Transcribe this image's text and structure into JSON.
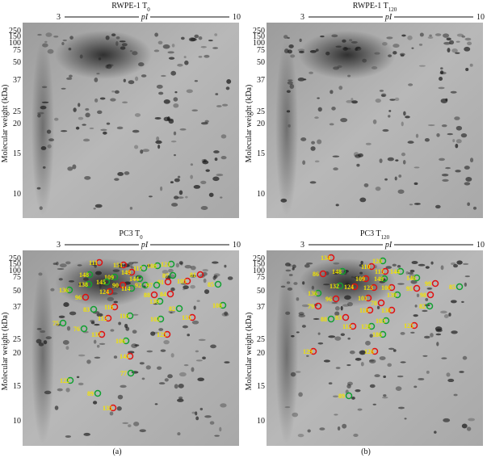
{
  "panels": [
    {
      "title": "RWPE-1 T",
      "title_sub": "0",
      "pi_start": "3",
      "pi_label": "pI",
      "pi_end": "10",
      "y_label": "Molecular weight (kDa)",
      "mw_ticks": [
        "250",
        "150",
        "100",
        "75",
        "50",
        "37",
        "25",
        "20",
        "15",
        "10"
      ]
    },
    {
      "title": "RWPE-1 T",
      "title_sub": "120",
      "pi_start": "3",
      "pi_label": "pI",
      "pi_end": "10",
      "y_label": "Molecular weight (kDa)",
      "mw_ticks": [
        "250",
        "150",
        "100",
        "75",
        "50",
        "37",
        "25",
        "20",
        "15",
        "10"
      ]
    },
    {
      "title": "PC3 T",
      "title_sub": "0",
      "pi_start": "3",
      "pi_label": "pI",
      "pi_end": "10",
      "y_label": "Molecular weight (kDa)",
      "mw_ticks": [
        "250",
        "150",
        "100",
        "75",
        "50",
        "37",
        "25",
        "20",
        "15",
        "10"
      ],
      "spots": [
        "111",
        "151",
        "108",
        "121",
        "117",
        "148",
        "149",
        "109",
        "144",
        "87",
        "145",
        "90",
        "114",
        "92",
        "91",
        "105",
        "81",
        "85",
        "136",
        "138",
        "124",
        "88",
        "97",
        "84",
        "96",
        "139",
        "118",
        "83",
        "82",
        "108",
        "116",
        "112",
        "131",
        "102",
        "75",
        "76",
        "137",
        "125",
        "106",
        "141",
        "77",
        "122",
        "89",
        "135"
      ]
    },
    {
      "title": "PC3 T",
      "title_sub": "120",
      "pi_start": "3",
      "pi_label": "pI",
      "pi_end": "10",
      "y_label": "Molecular weight (kDa)",
      "mw_ticks": [
        "250",
        "150",
        "100",
        "75",
        "50",
        "37",
        "25",
        "20",
        "15",
        "10"
      ],
      "spots": [
        "134",
        "120",
        "110",
        "86",
        "148",
        "115",
        "144",
        "109",
        "149",
        "146",
        "99",
        "85",
        "132",
        "124",
        "123",
        "100",
        "95",
        "136",
        "98",
        "96",
        "101",
        "139",
        "78",
        "82",
        "79",
        "118",
        "130",
        "88",
        "83",
        "103",
        "112",
        "128",
        "125",
        "186",
        "126",
        "129",
        "89"
      ]
    }
  ],
  "captions": [
    "(a)",
    "(b)"
  ]
}
